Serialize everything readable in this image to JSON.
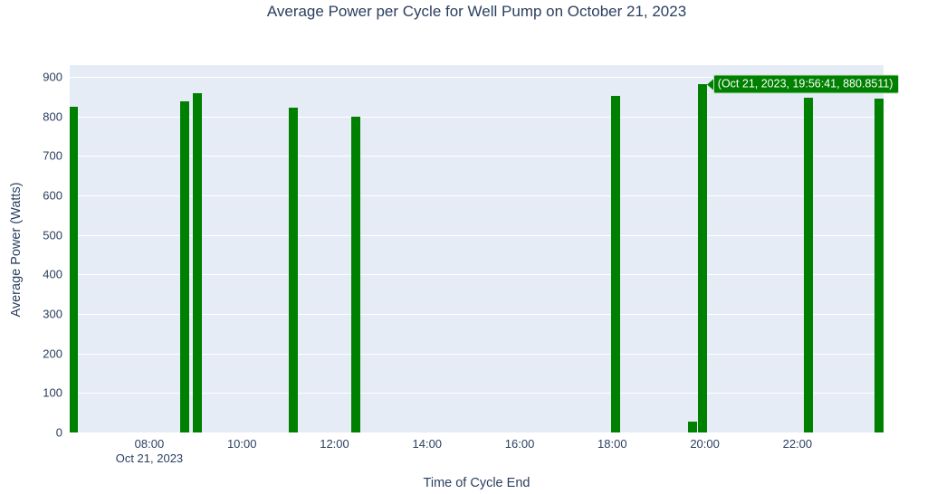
{
  "colors": {
    "bar": "#008000",
    "plot_bg": "#e5ecf6",
    "grid": "#ffffff",
    "text": "#2a3f5f",
    "tooltip_bg": "#008000",
    "tooltip_text": "#ffffff"
  },
  "chart_data": {
    "type": "bar",
    "title": "Average Power per Cycle for Well Pump on October 21, 2023",
    "xlabel": "Time of Cycle End",
    "ylabel": "Average Power (Watts)",
    "date": "Oct 21, 2023",
    "x": [
      "06:21",
      "08:46",
      "09:03",
      "11:06",
      "12:27",
      "18:05",
      "19:44",
      "19:56:41",
      "22:14",
      "23:45"
    ],
    "x_hours": [
      6.36,
      8.77,
      9.04,
      11.11,
      12.45,
      18.08,
      19.73,
      19.945,
      22.23,
      23.757
    ],
    "values": [
      825,
      838,
      860,
      822,
      799,
      852,
      28,
      880.8511,
      847,
      845
    ],
    "x_ticks": [
      {
        "hour": 8,
        "label": "08:00",
        "sub": "Oct 21, 2023"
      },
      {
        "hour": 10,
        "label": "10:00"
      },
      {
        "hour": 12,
        "label": "12:00"
      },
      {
        "hour": 14,
        "label": "14:00"
      },
      {
        "hour": 16,
        "label": "16:00"
      },
      {
        "hour": 18,
        "label": "18:00"
      },
      {
        "hour": 20,
        "label": "20:00"
      },
      {
        "hour": 22,
        "label": "22:00"
      }
    ],
    "x_range_hours": [
      6.28,
      23.86
    ],
    "y_ticks": [
      0,
      100,
      200,
      300,
      400,
      500,
      600,
      700,
      800,
      900
    ],
    "y_range": [
      0,
      930
    ],
    "grid": true,
    "legend": "none",
    "hover": {
      "index": 7,
      "text": "(Oct 21, 2023, 19:56:41, 880.8511)"
    }
  }
}
